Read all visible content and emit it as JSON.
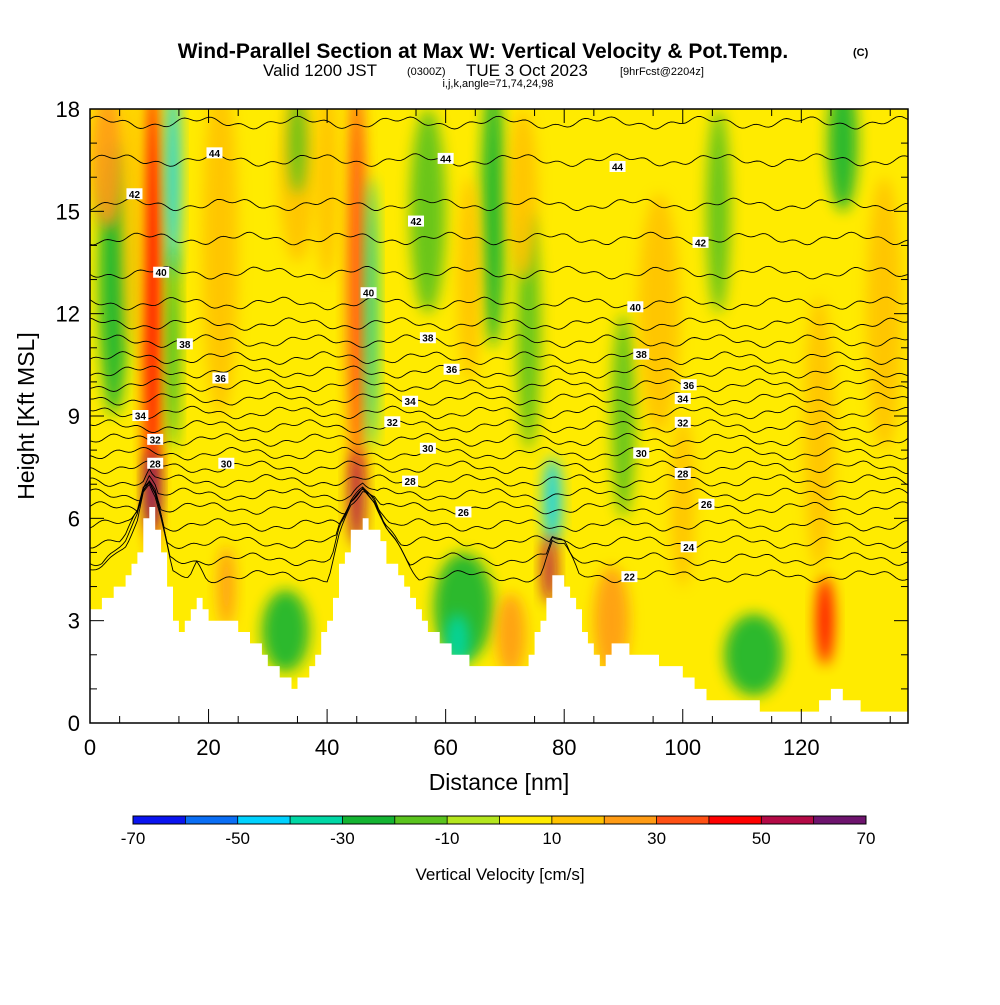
{
  "title": {
    "main": "Wind-Parallel Section at Max W: Vertical Velocity & Pot.Temp.",
    "tag": "(C)",
    "valid_prefix": "Valid 1200 JST",
    "valid_utc": "(0300Z)",
    "valid_date": "TUE 3 Oct 2023",
    "forecast": "[9hrFcst@2204z]",
    "ijk": "i,j,k,angle=71,74,24,98"
  },
  "chart_data": {
    "type": "heatmap",
    "xlabel": "Distance [nm]",
    "ylabel": "Height [Kft MSL]",
    "xlim": [
      0,
      138
    ],
    "ylim": [
      0,
      18
    ],
    "x_ticks": [
      0,
      20,
      40,
      60,
      80,
      100,
      120
    ],
    "y_ticks": [
      0,
      3,
      6,
      9,
      12,
      15,
      18
    ],
    "colorbar": {
      "title": "Vertical Velocity [cm/s]",
      "tick_labels": [
        "-70",
        "-50",
        "-30",
        "-10",
        "10",
        "30",
        "50",
        "70"
      ],
      "boundaries": [
        -70,
        -60,
        -50,
        -40,
        -30,
        -20,
        -10,
        0,
        10,
        20,
        30,
        40,
        50,
        60,
        70
      ],
      "colors": [
        "#0a14f0",
        "#0a6ef5",
        "#00d2ff",
        "#00d7a5",
        "#14b432",
        "#5ac31e",
        "#b4e61e",
        "#ffeb00",
        "#ffc300",
        "#ff9b14",
        "#ff5014",
        "#ff0000",
        "#b40a46",
        "#6e146e"
      ]
    },
    "terrain": [
      [
        0,
        3.3
      ],
      [
        2,
        3.6
      ],
      [
        4,
        3.9
      ],
      [
        6,
        4.3
      ],
      [
        8,
        5.0
      ],
      [
        9,
        5.9
      ],
      [
        10,
        6.2
      ],
      [
        11,
        5.8
      ],
      [
        12,
        5.0
      ],
      [
        13,
        4.0
      ],
      [
        14,
        3.0
      ],
      [
        15,
        2.6
      ],
      [
        16,
        2.9
      ],
      [
        17,
        3.2
      ],
      [
        18,
        3.6
      ],
      [
        19,
        3.3
      ],
      [
        20,
        3.0
      ],
      [
        22,
        3.0
      ],
      [
        24,
        3.0
      ],
      [
        26,
        2.6
      ],
      [
        28,
        2.2
      ],
      [
        30,
        1.8
      ],
      [
        32,
        1.4
      ],
      [
        34,
        1.1
      ],
      [
        36,
        1.4
      ],
      [
        38,
        2.0
      ],
      [
        40,
        3.0
      ],
      [
        42,
        4.5
      ],
      [
        44,
        5.5
      ],
      [
        46,
        5.9
      ],
      [
        48,
        5.6
      ],
      [
        50,
        4.8
      ],
      [
        52,
        4.2
      ],
      [
        54,
        3.6
      ],
      [
        56,
        3.0
      ],
      [
        58,
        2.6
      ],
      [
        60,
        2.3
      ],
      [
        62,
        2.0
      ],
      [
        64,
        1.7
      ],
      [
        66,
        1.5
      ],
      [
        68,
        1.6
      ],
      [
        70,
        1.8
      ],
      [
        72,
        1.6
      ],
      [
        74,
        2.0
      ],
      [
        76,
        3.0
      ],
      [
        78,
        4.3
      ],
      [
        80,
        4.1
      ],
      [
        82,
        3.3
      ],
      [
        84,
        2.2
      ],
      [
        86,
        1.8
      ],
      [
        88,
        2.3
      ],
      [
        90,
        2.2
      ],
      [
        92,
        2.0
      ],
      [
        94,
        1.9
      ],
      [
        96,
        1.8
      ],
      [
        98,
        1.6
      ],
      [
        100,
        1.4
      ],
      [
        102,
        1.1
      ],
      [
        104,
        0.7
      ],
      [
        106,
        0.5
      ],
      [
        108,
        0.5
      ],
      [
        110,
        0.5
      ],
      [
        112,
        0.5
      ],
      [
        114,
        0.4
      ],
      [
        118,
        0.4
      ],
      [
        122,
        0.4
      ],
      [
        124,
        0.8
      ],
      [
        126,
        1.0
      ],
      [
        128,
        0.6
      ],
      [
        130,
        0.4
      ],
      [
        134,
        0.4
      ],
      [
        138,
        0.4
      ]
    ],
    "velocity_features": [
      {
        "x": 10.5,
        "y": 12,
        "w": 1.5,
        "h": 7,
        "v": 45
      },
      {
        "x": 10.5,
        "y": 6.8,
        "w": 1.2,
        "h": 1.2,
        "v": 60
      },
      {
        "x": 14,
        "y": 16,
        "w": 1.2,
        "h": 3,
        "v": -45
      },
      {
        "x": 14,
        "y": 11,
        "w": 1.0,
        "h": 3,
        "v": -28
      },
      {
        "x": 4,
        "y": 13,
        "w": 2.5,
        "h": 4,
        "v": -22
      },
      {
        "x": 3,
        "y": 16.5,
        "w": 3,
        "h": 2,
        "v": 20
      },
      {
        "x": 7,
        "y": 15,
        "w": 1.5,
        "h": 4,
        "v": 18
      },
      {
        "x": 23,
        "y": 4,
        "w": 1.5,
        "h": 1.2,
        "v": 28
      },
      {
        "x": 33,
        "y": 2.7,
        "w": 4,
        "h": 1.2,
        "v": -25
      },
      {
        "x": 22,
        "y": 14,
        "w": 3,
        "h": 5,
        "v": 14
      },
      {
        "x": 35,
        "y": 16,
        "w": 3,
        "h": 2.5,
        "v": 14
      },
      {
        "x": 45,
        "y": 13,
        "w": 1.6,
        "h": 6,
        "v": 30
      },
      {
        "x": 45,
        "y": 6.6,
        "w": 1.4,
        "h": 1.4,
        "v": 52
      },
      {
        "x": 47.5,
        "y": 12,
        "w": 1.0,
        "h": 4,
        "v": -32
      },
      {
        "x": 40,
        "y": 16,
        "w": 2,
        "h": 3,
        "v": 15
      },
      {
        "x": 35,
        "y": 17,
        "w": 1.5,
        "h": 1.5,
        "v": -18
      },
      {
        "x": 57,
        "y": 15,
        "w": 3,
        "h": 3,
        "v": -14
      },
      {
        "x": 63,
        "y": 3.4,
        "w": 5,
        "h": 1.6,
        "v": -30
      },
      {
        "x": 62,
        "y": 2.4,
        "w": 2,
        "h": 0.8,
        "v": -40
      },
      {
        "x": 71,
        "y": 2.6,
        "w": 2.5,
        "h": 1.2,
        "v": 26
      },
      {
        "x": 68,
        "y": 15,
        "w": 2,
        "h": 4,
        "v": -22
      },
      {
        "x": 64,
        "y": 13,
        "w": 2,
        "h": 3,
        "v": 18
      },
      {
        "x": 78,
        "y": 6.5,
        "w": 1.5,
        "h": 1.3,
        "v": -45
      },
      {
        "x": 77.5,
        "y": 4.5,
        "w": 1.2,
        "h": 1,
        "v": 50
      },
      {
        "x": 74,
        "y": 11.5,
        "w": 2,
        "h": 3.5,
        "v": -20
      },
      {
        "x": 73,
        "y": 15.5,
        "w": 2.5,
        "h": 2.5,
        "v": 15
      },
      {
        "x": 90,
        "y": 9,
        "w": 2,
        "h": 3,
        "v": -20
      },
      {
        "x": 88,
        "y": 3.0,
        "w": 3,
        "h": 1.6,
        "v": 22
      },
      {
        "x": 96,
        "y": 12,
        "w": 3.5,
        "h": 3.5,
        "v": 14
      },
      {
        "x": 100,
        "y": 6.5,
        "w": 2,
        "h": 2.5,
        "v": 14
      },
      {
        "x": 106,
        "y": 15,
        "w": 2,
        "h": 3,
        "v": -14
      },
      {
        "x": 112,
        "y": 2.0,
        "w": 5,
        "h": 1.2,
        "v": -24
      },
      {
        "x": 124,
        "y": 3.0,
        "w": 1.5,
        "h": 1.3,
        "v": 45
      },
      {
        "x": 123,
        "y": 8.5,
        "w": 2.5,
        "h": 4,
        "v": 14
      },
      {
        "x": 127,
        "y": 17,
        "w": 2.5,
        "h": 2,
        "v": -22
      },
      {
        "x": 134,
        "y": 12,
        "w": 3,
        "h": 4,
        "v": 14
      }
    ],
    "theta_contours": [
      {
        "theta": 22,
        "base": 4.3,
        "label": "22",
        "label_x": 91
      },
      {
        "theta": 23,
        "base": 4.8,
        "label": "",
        "label_x": 0
      },
      {
        "theta": 24,
        "base": 5.3,
        "label": "24",
        "label_x": 101
      },
      {
        "theta": 25,
        "base": 5.8,
        "label": "",
        "label_x": 0
      },
      {
        "theta": 26,
        "base": 6.3,
        "label": "26",
        "label_x": 63
      },
      {
        "theta": 27,
        "base": 6.7,
        "label": "",
        "label_x": 0
      },
      {
        "theta": 28,
        "base": 7.1,
        "label": "28",
        "label_x": 54
      },
      {
        "theta": 29,
        "base": 7.5,
        "label": "",
        "label_x": 0
      },
      {
        "theta": 30,
        "base": 7.9,
        "label": "30",
        "label_x": 57
      },
      {
        "theta": 31,
        "base": 8.3,
        "label": "",
        "label_x": 0
      },
      {
        "theta": 32,
        "base": 8.7,
        "label": "32",
        "label_x": 51
      },
      {
        "theta": 33,
        "base": 9.1,
        "label": "",
        "label_x": 0
      },
      {
        "theta": 34,
        "base": 9.5,
        "label": "34",
        "label_x": 54
      },
      {
        "theta": 35,
        "base": 9.9,
        "label": "",
        "label_x": 0
      },
      {
        "theta": 36,
        "base": 10.3,
        "label": "36",
        "label_x": 61
      },
      {
        "theta": 37,
        "base": 10.7,
        "label": "",
        "label_x": 0
      },
      {
        "theta": 38,
        "base": 11.2,
        "label": "38",
        "label_x": 57
      },
      {
        "theta": 39,
        "base": 11.7,
        "label": "",
        "label_x": 0
      },
      {
        "theta": 40,
        "base": 12.3,
        "label": "40",
        "label_x": 92
      },
      {
        "theta": 41,
        "base": 13.2,
        "label": "",
        "label_x": 0
      },
      {
        "theta": 42,
        "base": 14.2,
        "label": "42",
        "label_x": 103
      },
      {
        "theta": 43,
        "base": 15.2,
        "label": "",
        "label_x": 0
      },
      {
        "theta": 44,
        "base": 16.5,
        "label": "44",
        "label_x": 60
      },
      {
        "theta": 45,
        "base": 17.6,
        "label": "",
        "label_x": 0
      }
    ],
    "extra_contour_labels": [
      {
        "text": "44",
        "x": 21,
        "y": 16.7
      },
      {
        "text": "44",
        "x": 89,
        "y": 16.3
      },
      {
        "text": "42",
        "x": 7.5,
        "y": 15.5
      },
      {
        "text": "42",
        "x": 55,
        "y": 14.7
      },
      {
        "text": "40",
        "x": 12,
        "y": 13.2
      },
      {
        "text": "40",
        "x": 47,
        "y": 12.6
      },
      {
        "text": "38",
        "x": 16,
        "y": 11.1
      },
      {
        "text": "38",
        "x": 93,
        "y": 10.8
      },
      {
        "text": "36",
        "x": 22,
        "y": 10.1
      },
      {
        "text": "36",
        "x": 101,
        "y": 9.9
      },
      {
        "text": "34",
        "x": 8.5,
        "y": 9.0
      },
      {
        "text": "34",
        "x": 100,
        "y": 9.5
      },
      {
        "text": "32",
        "x": 11,
        "y": 8.3
      },
      {
        "text": "32",
        "x": 100,
        "y": 8.8
      },
      {
        "text": "30",
        "x": 23,
        "y": 7.6
      },
      {
        "text": "30",
        "x": 93,
        "y": 7.9
      },
      {
        "text": "28",
        "x": 11,
        "y": 7.6
      },
      {
        "text": "28",
        "x": 100,
        "y": 7.3
      },
      {
        "text": "26",
        "x": 104,
        "y": 6.4
      }
    ]
  }
}
